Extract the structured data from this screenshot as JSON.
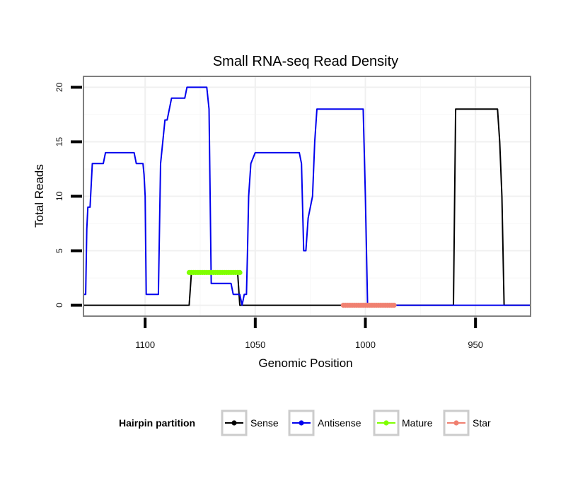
{
  "chart_data": {
    "type": "line",
    "title": "Small RNA-seq Read Density",
    "xlabel": "Genomic Position",
    "ylabel": "Total Reads",
    "xlim": [
      1128,
      925
    ],
    "x_reversed": true,
    "ylim": [
      -1,
      21
    ],
    "xticks": [
      1100,
      1050,
      1000,
      950
    ],
    "xtick_labels": [
      "1100",
      "1050",
      "1000",
      "950"
    ],
    "yticks": [
      0,
      5,
      10,
      15,
      20
    ],
    "ytick_labels": [
      "0",
      "5",
      "10",
      "15",
      "20"
    ],
    "grid": true,
    "legend_title": "Hairpin partition",
    "legend_position": "bottom",
    "series": [
      {
        "name": "Sense",
        "color": "#000000",
        "kind": "line",
        "x": [
          1128,
          1080,
          1079,
          1058,
          1057,
          960,
          959,
          940,
          939,
          938,
          937,
          925
        ],
        "y": [
          0,
          0,
          3,
          3,
          0,
          0,
          18,
          18,
          15,
          10,
          0,
          0
        ]
      },
      {
        "name": "Antisense",
        "color": "#0000ee",
        "kind": "line",
        "x": [
          1128,
          1127,
          1126.5,
          1126,
          1125,
          1124,
          1119,
          1118,
          1113,
          1105,
          1104,
          1101,
          1100.5,
          1100,
          1099.5,
          1094,
          1093,
          1092,
          1091,
          1090,
          1089,
          1088,
          1087,
          1082,
          1081,
          1080,
          1079,
          1072,
          1071,
          1070,
          1069,
          1061,
          1060,
          1057,
          1056,
          1055,
          1054,
          1053.5,
          1053,
          1052,
          1050,
          1030,
          1029,
          1028,
          1027,
          1026,
          1025,
          1024,
          1023,
          1022,
          1021,
          1020,
          1001,
          1000,
          999,
          925
        ],
        "y": [
          1,
          1,
          7,
          9,
          9,
          13,
          13,
          14,
          14,
          14,
          13,
          13,
          12,
          10,
          1,
          1,
          13,
          15,
          17,
          17,
          18,
          19,
          19,
          19,
          20,
          20,
          20,
          20,
          18,
          2,
          2,
          2,
          1,
          1,
          0,
          1,
          1,
          5,
          10,
          13,
          14,
          14,
          13,
          5,
          5,
          8,
          9,
          10,
          15,
          18,
          18,
          18,
          18,
          10,
          0,
          0
        ]
      },
      {
        "name": "Mature",
        "color": "#7fff00",
        "kind": "band",
        "x": [
          1080,
          1057
        ],
        "y": [
          3,
          3
        ]
      },
      {
        "name": "Star",
        "color": "#f08070",
        "kind": "band",
        "x": [
          1010,
          987
        ],
        "y": [
          0,
          0
        ]
      }
    ]
  }
}
